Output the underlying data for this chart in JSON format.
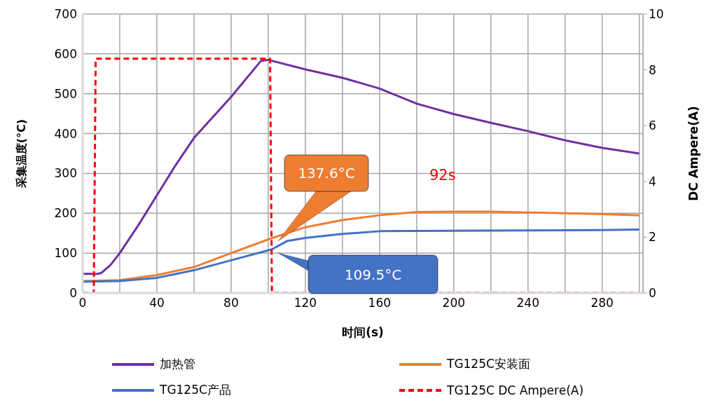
{
  "chart_data": {
    "type": "line",
    "xlabel": "时间(s)",
    "ylabel": "采集温度(°C)",
    "y2label": "DC Ampere(A)",
    "xlim": [
      0,
      302
    ],
    "xticks": [
      0,
      {
        "value": 20,
        "label": null
      },
      40,
      {
        "value": 60,
        "label": null
      },
      80,
      {
        "value": 100,
        "label": null
      },
      120,
      {
        "value": 140,
        "label": null
      },
      160,
      {
        "value": 180,
        "label": null
      },
      200,
      {
        "value": 220,
        "label": null
      },
      240,
      {
        "value": 260,
        "label": null
      },
      280,
      {
        "value": 300,
        "label": null
      }
    ],
    "ylim": [
      0,
      700
    ],
    "yticks": [
      0,
      100,
      200,
      300,
      400,
      500,
      600,
      700
    ],
    "y2lim": [
      0,
      10
    ],
    "y2ticks": [
      0,
      2,
      4,
      6,
      8,
      10
    ],
    "grid": true,
    "legend": "bottom",
    "series": [
      {
        "name": "加热管",
        "color": "#7030a0",
        "x": [
          0,
          8,
          10,
          15,
          20,
          30,
          40,
          50,
          60,
          80,
          96,
          100,
          120,
          140,
          160,
          180,
          200,
          220,
          240,
          260,
          280,
          300
        ],
        "values": [
          48,
          48,
          50,
          70,
          100,
          170,
          245,
          320,
          389,
          492,
          582,
          585,
          561,
          540,
          513,
          475,
          449,
          427,
          406,
          383,
          364,
          350
        ]
      },
      {
        "name": "TG125C安装面",
        "color": "#ed7d31",
        "x": [
          0,
          20,
          40,
          60,
          80,
          102,
          120,
          140,
          160,
          180,
          200,
          220,
          240,
          260,
          280,
          300
        ],
        "values": [
          30,
          32,
          45,
          65,
          100,
          137.6,
          165,
          183,
          195,
          203,
          204,
          204,
          202,
          200,
          198,
          195
        ]
      },
      {
        "name": "TG125C产品",
        "color": "#4472c4",
        "x": [
          0,
          20,
          40,
          60,
          80,
          102,
          110,
          120,
          140,
          160,
          200,
          240,
          280,
          300
        ],
        "values": [
          28,
          30,
          38,
          57,
          82,
          109.5,
          130,
          138,
          148,
          155,
          156,
          157,
          158,
          159
        ]
      },
      {
        "name": "TG125C DC Ampere(A)",
        "color": "#ff0000",
        "axis": "y2",
        "line_style": "dashed",
        "x": [
          0,
          6,
          7,
          101,
          102,
          300
        ],
        "values": [
          0,
          0,
          8.4,
          8.4,
          0,
          0
        ]
      }
    ],
    "annotations": [
      "137.6°C",
      "109.5°C",
      "92s"
    ]
  }
}
